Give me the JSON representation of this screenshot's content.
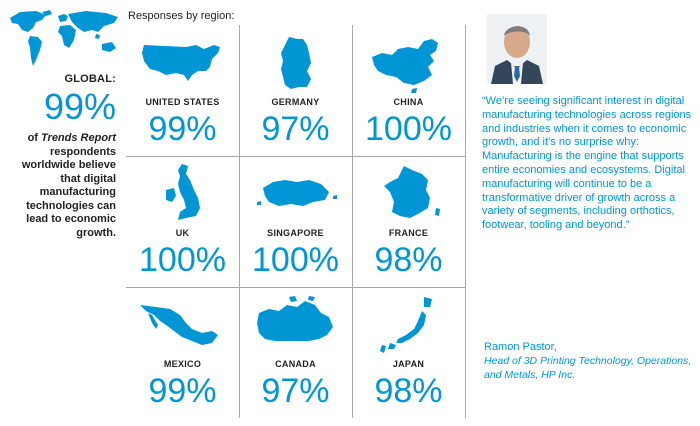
{
  "global": {
    "label": "GLOBAL:",
    "percent": "99%",
    "desc_prefix": "of ",
    "desc_emphasis": "Trends Report",
    "desc_rest": " respondents worldwide believe that digital manufacturing technologies can lead to economic growth."
  },
  "grid": {
    "title": "Responses by region:",
    "regions": [
      {
        "name": "UNITED STATES",
        "percent": "99%"
      },
      {
        "name": "GERMANY",
        "percent": "97%"
      },
      {
        "name": "CHINA",
        "percent": "100%"
      },
      {
        "name": "UK",
        "percent": "100%"
      },
      {
        "name": "SINGAPORE",
        "percent": "100%"
      },
      {
        "name": "FRANCE",
        "percent": "98%"
      },
      {
        "name": "MEXICO",
        "percent": "99%"
      },
      {
        "name": "CANADA",
        "percent": "97%"
      },
      {
        "name": "JAPAN",
        "percent": "98%"
      }
    ]
  },
  "quote": {
    "text": "“We’re seeing significant interest in digital manufacturing technologies across regions and industries when it comes to economic growth, and it’s no surprise why: Manufacturing is the engine that supports entire economies and ecosystems. Digital manufacturing will continue to be a transformative driver of growth across a variety of segments, including orthotics, footwear, tooling and beyond.”",
    "author": "Ramon Pastor,",
    "author_title": "Head of 3D Printing Technology, Operations, and Metals, HP Inc."
  },
  "colors": {
    "accent": "#0096d6",
    "text": "#222222",
    "gridline": "#a8a8a8"
  }
}
